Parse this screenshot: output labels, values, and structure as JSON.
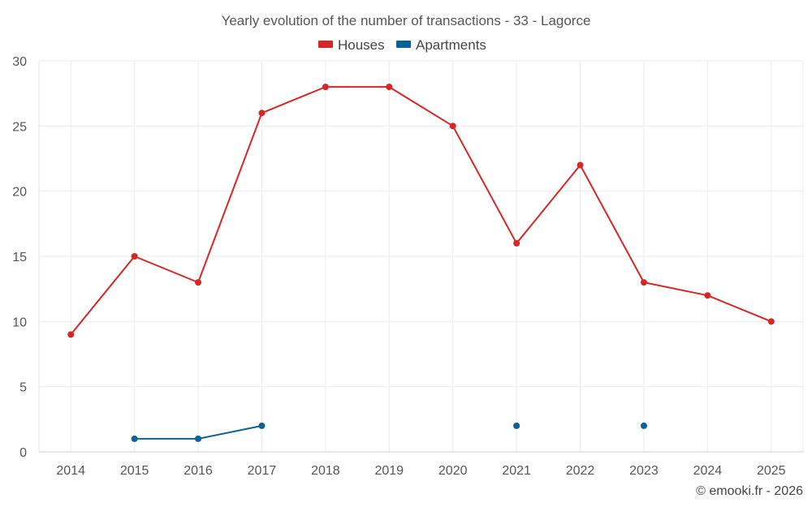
{
  "chart_data": {
    "type": "line",
    "title": "Yearly evolution of the number of transactions - 33 - Lagorce",
    "x": [
      "2014",
      "2015",
      "2016",
      "2017",
      "2018",
      "2019",
      "2020",
      "2021",
      "2022",
      "2023",
      "2024",
      "2025"
    ],
    "ylim": [
      0,
      30
    ],
    "yticks": [
      0,
      5,
      10,
      15,
      20,
      25,
      30
    ],
    "grid": true,
    "legend_position": "top-center",
    "series": [
      {
        "name": "Houses",
        "color": "#d62728",
        "values": [
          9,
          15,
          13,
          26,
          28,
          28,
          25,
          16,
          22,
          13,
          12,
          10
        ]
      },
      {
        "name": "Apartments",
        "color": "#0a6296",
        "values": [
          null,
          1,
          1,
          2,
          null,
          null,
          null,
          2,
          null,
          2,
          null,
          null
        ]
      }
    ]
  },
  "credit": "© emooki.fr - 2026"
}
